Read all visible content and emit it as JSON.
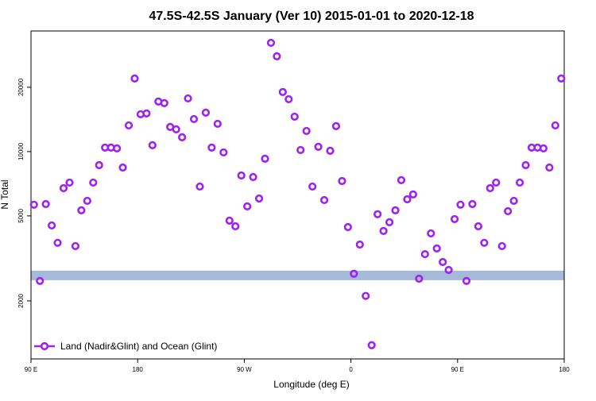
{
  "chart_data": {
    "type": "scatter",
    "title": "47.5S-42.5S January (Ver 10)   2015-01-01 to 2020-12-18",
    "xlabel": "Longitude (deg E)",
    "ylabel": "N Total",
    "xlim": [
      90,
      540
    ],
    "xticks": [
      {
        "value": 90,
        "label": "90 E"
      },
      180,
      {
        "value": 270,
        "label": "90 W"
      },
      {
        "value": 360,
        "label": "0"
      },
      {
        "value": 450,
        "label": "90 E"
      },
      {
        "value": 540,
        "label": "180"
      }
    ],
    "ylim": [
      1070,
      36700
    ],
    "yticks": [
      2000,
      5000,
      10000,
      20000
    ],
    "log_y": true,
    "legend": "bottom-left",
    "band": {
      "ylim": [
        2500,
        2770
      ],
      "color": "#a5b9d9"
    },
    "x": [
      92.5,
      97.5,
      102.5,
      107.5,
      112.5,
      117.5,
      122.5,
      127.5,
      132.5,
      137.5,
      142.5,
      147.5,
      152.5,
      157.5,
      162.5,
      167.5,
      172.5,
      177.5,
      182.5,
      187.5,
      192.5,
      197.5,
      202.5,
      207.5,
      212.5,
      217.5,
      222.5,
      227.5,
      232.5,
      237.5,
      242.5,
      247.5,
      252.5,
      257.5,
      262.5,
      267.5,
      272.5,
      277.5,
      282.5,
      287.5,
      292.5,
      297.5,
      302.5,
      307.5,
      312.5,
      317.5,
      322.5,
      327.5,
      332.5,
      337.5,
      342.5,
      347.5,
      352.5,
      357.5,
      362.5,
      367.5,
      372.5,
      377.5,
      382.5,
      387.5,
      392.5,
      397.5,
      402.5,
      407.5,
      412.5,
      417.5,
      422.5,
      427.5,
      432.5,
      437.5,
      442.5,
      447.5,
      452.5,
      457.5,
      462.5,
      467.5,
      472.5,
      477.5,
      482.5,
      487.5,
      492.5,
      497.5,
      502.5,
      507.5,
      512.5,
      517.5,
      522.5,
      527.5,
      532.5,
      537.5
    ],
    "series": [
      {
        "name": "Land (Nadir&Glint) and Ocean (Glint)",
        "color": "#a020f0",
        "values": [
          5640,
          2480,
          5680,
          4510,
          3740,
          6740,
          7160,
          3610,
          5310,
          5880,
          7160,
          8640,
          10440,
          10440,
          10350,
          8420,
          13260,
          21980,
          14950,
          15080,
          10710,
          17150,
          16860,
          13040,
          12710,
          11670,
          17740,
          14200,
          6860,
          15210,
          10440,
          13490,
          9910,
          4750,
          4470,
          7730,
          5540,
          7600,
          6030,
          9260,
          32300,
          27930,
          19000,
          17590,
          14570,
          10170,
          12490,
          6860,
          10530,
          5930,
          10090,
          13150,
          7280,
          4430,
          2680,
          3670,
          2110,
          1240,
          5090,
          4250,
          4670,
          5310,
          7350,
          5980,
          6300,
          2540,
          3310,
          4140,
          3520,
          3040,
          2790,
          4830,
          5640,
          2480,
          5680,
          4470,
          3740,
          6740,
          7160,
          3610,
          5260,
          5880,
          7160,
          8640,
          10440,
          10440,
          10350,
          8420,
          13260,
          21980
        ]
      }
    ]
  }
}
